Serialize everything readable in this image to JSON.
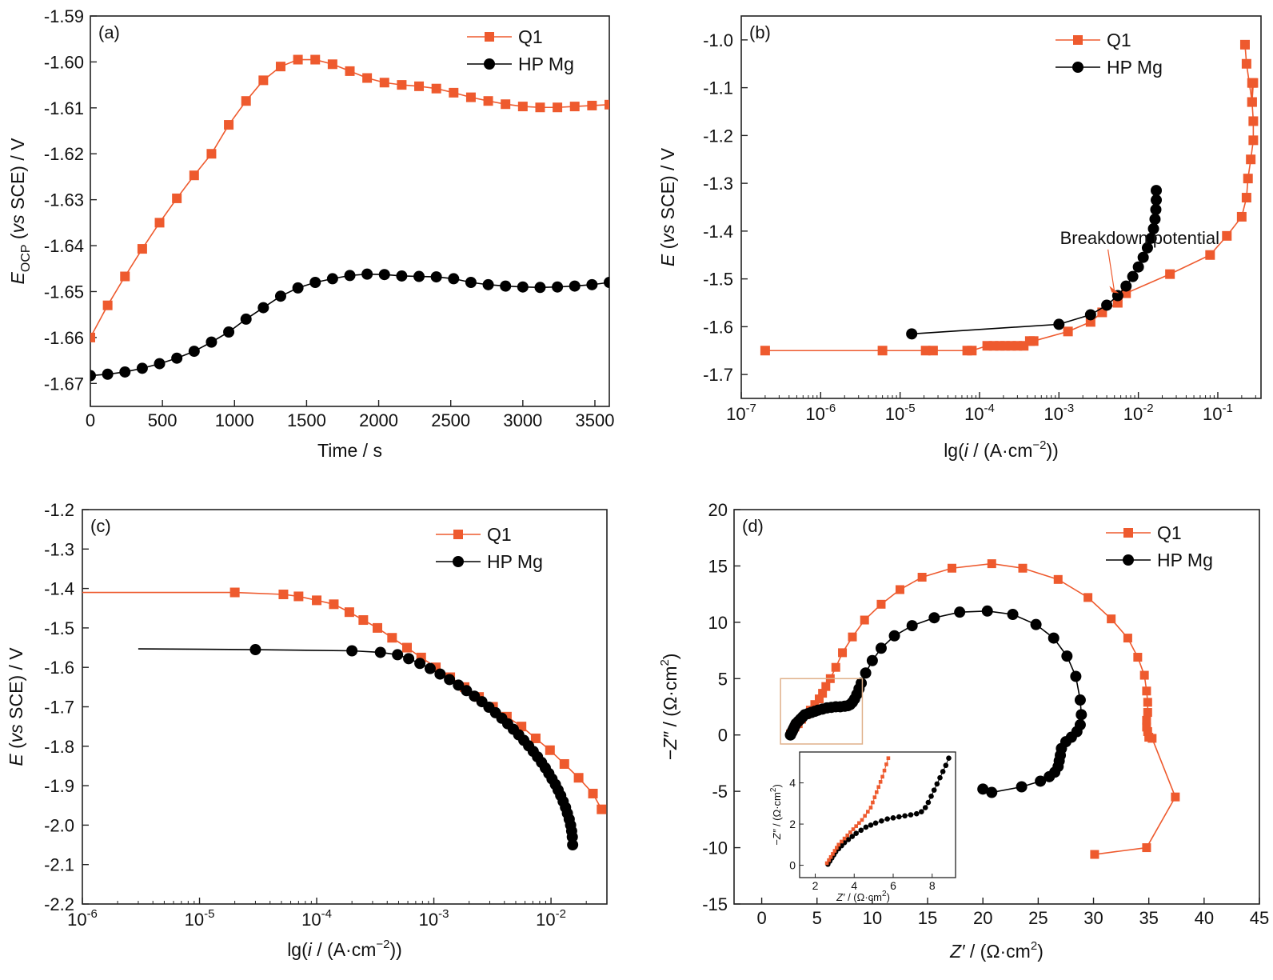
{
  "colors": {
    "q1": "#ee5a2e",
    "hp": "#000000",
    "frame": "#222222",
    "inset_box": "#e0b08a"
  },
  "chart_data": [
    {
      "id": "a",
      "type": "line",
      "panel_label": "(a)",
      "xlabel": "Time / s",
      "ylabel": {
        "main": "E",
        "sub": "OCP",
        "rest": " (vs SCE) / V",
        "italic_part": "vs"
      },
      "xlim": [
        0,
        3600
      ],
      "ylim": [
        -1.675,
        -1.59
      ],
      "xticks": [
        0,
        500,
        1000,
        1500,
        2000,
        2500,
        3000,
        3500
      ],
      "xtick_labels": [
        "0",
        "500",
        "1000",
        "1500",
        "2000",
        "2500",
        "3000",
        "3500"
      ],
      "yticks": [
        -1.59,
        -1.6,
        -1.61,
        -1.62,
        -1.63,
        -1.64,
        -1.65,
        -1.66,
        -1.67
      ],
      "ytick_labels": [
        "-1.59",
        "-1.60",
        "-1.61",
        "-1.62",
        "-1.63",
        "-1.64",
        "-1.65",
        "-1.66",
        "-1.67"
      ],
      "legend": "top-right",
      "series": [
        {
          "name": "Q1",
          "marker": "square",
          "color": "#ee5a2e",
          "x": [
            0,
            120,
            240,
            360,
            480,
            600,
            720,
            840,
            960,
            1080,
            1200,
            1320,
            1440,
            1560,
            1680,
            1800,
            1920,
            2040,
            2160,
            2280,
            2400,
            2520,
            2640,
            2760,
            2880,
            3000,
            3120,
            3240,
            3360,
            3480,
            3600
          ],
          "y": [
            -1.66,
            -1.653,
            -1.6467,
            -1.6407,
            -1.635,
            -1.6297,
            -1.6247,
            -1.62,
            -1.6137,
            -1.6085,
            -1.604,
            -1.601,
            -1.5995,
            -1.5995,
            -1.6005,
            -1.602,
            -1.6035,
            -1.6045,
            -1.605,
            -1.6053,
            -1.6058,
            -1.6067,
            -1.6077,
            -1.6085,
            -1.6092,
            -1.6097,
            -1.6099,
            -1.6099,
            -1.6097,
            -1.6095,
            -1.6093
          ]
        },
        {
          "name": "HP Mg",
          "marker": "circle",
          "color": "#000000",
          "x": [
            0,
            120,
            240,
            360,
            480,
            600,
            720,
            840,
            960,
            1080,
            1200,
            1320,
            1440,
            1560,
            1680,
            1800,
            1920,
            2040,
            2160,
            2280,
            2400,
            2520,
            2640,
            2760,
            2880,
            3000,
            3120,
            3240,
            3360,
            3480,
            3600
          ],
          "y": [
            -1.6683,
            -1.668,
            -1.6675,
            -1.6667,
            -1.6657,
            -1.6645,
            -1.663,
            -1.661,
            -1.6588,
            -1.656,
            -1.6535,
            -1.651,
            -1.6492,
            -1.648,
            -1.6472,
            -1.6465,
            -1.6462,
            -1.6463,
            -1.6466,
            -1.6467,
            -1.6468,
            -1.6472,
            -1.648,
            -1.6485,
            -1.6488,
            -1.649,
            -1.6491,
            -1.649,
            -1.6488,
            -1.6485,
            -1.648
          ]
        }
      ]
    },
    {
      "id": "b",
      "type": "line",
      "panel_label": "(b)",
      "xlabel": {
        "pre": "lg(",
        "italic": "i",
        "post": " / (A·cm",
        "sup": "−2",
        "end": "))"
      },
      "ylabel": {
        "main": "E",
        "rest_pre": " (",
        "italic_part": "vs",
        "rest_post": " SCE) / V"
      },
      "xscale": "log",
      "xlim": [
        1e-07,
        0.35
      ],
      "ylim": [
        -1.75,
        -0.95
      ],
      "xticks": [
        1e-07,
        1e-06,
        1e-05,
        0.0001,
        0.001,
        0.01,
        0.1
      ],
      "xtick_labels": [
        [
          "10",
          "-7"
        ],
        [
          "10",
          "-6"
        ],
        [
          "10",
          "-5"
        ],
        [
          "10",
          "-4"
        ],
        [
          "10",
          "-3"
        ],
        [
          "10",
          "-2"
        ],
        [
          "10",
          "-1"
        ]
      ],
      "yticks": [
        -1.0,
        -1.1,
        -1.2,
        -1.3,
        -1.4,
        -1.5,
        -1.6,
        -1.7
      ],
      "ytick_labels": [
        "-1.0",
        "-1.1",
        "-1.2",
        "-1.3",
        "-1.4",
        "-1.5",
        "-1.6",
        "-1.7"
      ],
      "legend": "top-right",
      "annotation": {
        "text": "Breakdown potential",
        "tx": 0.0013,
        "ty": -1.43,
        "ax": 0.0057,
        "ay": -1.53
      },
      "series": [
        {
          "name": "Q1",
          "marker": "square",
          "color": "#ee5a2e",
          "x": [
            2e-07,
            6e-06,
            2.1e-05,
            2.6e-05,
            7e-05,
            8e-05,
            0.000125,
            0.00015,
            0.00018,
            0.00021,
            0.00025,
            0.0003,
            0.00036,
            0.00043,
            0.00048,
            0.0013,
            0.0025,
            0.0035,
            0.0055,
            0.007,
            0.025,
            0.08,
            0.13,
            0.2,
            0.23,
            0.24,
            0.26,
            0.28,
            0.28,
            0.27,
            0.27,
            0.28,
            0.27,
            0.23,
            0.22
          ],
          "y": [
            -1.65,
            -1.65,
            -1.65,
            -1.65,
            -1.65,
            -1.65,
            -1.64,
            -1.64,
            -1.64,
            -1.64,
            -1.64,
            -1.64,
            -1.64,
            -1.63,
            -1.63,
            -1.61,
            -1.59,
            -1.57,
            -1.55,
            -1.53,
            -1.49,
            -1.45,
            -1.41,
            -1.37,
            -1.33,
            -1.29,
            -1.25,
            -1.21,
            -1.17,
            -1.13,
            -1.09,
            -1.09,
            -1.13,
            -1.05,
            -1.01
          ]
        },
        {
          "name": "HP Mg",
          "marker": "circle",
          "color": "#000000",
          "x": [
            1.4e-05,
            0.001,
            0.0025,
            0.004,
            0.0055,
            0.007,
            0.0085,
            0.01,
            0.0115,
            0.013,
            0.0145,
            0.0155,
            0.0162,
            0.0166,
            0.0168,
            0.0168
          ],
          "y": [
            -1.615,
            -1.595,
            -1.575,
            -1.555,
            -1.535,
            -1.515,
            -1.495,
            -1.475,
            -1.455,
            -1.435,
            -1.415,
            -1.395,
            -1.375,
            -1.355,
            -1.335,
            -1.315
          ]
        }
      ]
    },
    {
      "id": "c",
      "type": "line",
      "panel_label": "(c)",
      "xlabel": {
        "pre": "lg(",
        "italic": "i",
        "post": " / (A·cm",
        "sup": "−2",
        "end": "))"
      },
      "ylabel": {
        "main": "E",
        "rest_pre": " (",
        "italic_part": "vs",
        "rest_post": " SCE) / V"
      },
      "xscale": "log",
      "xlim": [
        1e-06,
        0.03
      ],
      "ylim": [
        -2.2,
        -1.2
      ],
      "xticks": [
        1e-06,
        1e-05,
        0.0001,
        0.001,
        0.01
      ],
      "xtick_labels": [
        [
          "10",
          "-6"
        ],
        [
          "10",
          "-5"
        ],
        [
          "10",
          "-4"
        ],
        [
          "10",
          "-3"
        ],
        [
          "10",
          "-2"
        ]
      ],
      "yticks": [
        -1.2,
        -1.3,
        -1.4,
        -1.5,
        -1.6,
        -1.7,
        -1.8,
        -1.9,
        -2.0,
        -2.1,
        -2.2
      ],
      "ytick_labels": [
        "-1.2",
        "-1.3",
        "-1.4",
        "-1.5",
        "-1.6",
        "-1.7",
        "-1.8",
        "-1.9",
        "-2.0",
        "-2.1",
        "-2.2"
      ],
      "legend": "top-right",
      "series": [
        {
          "name": "Q1",
          "marker": "square",
          "color": "#ee5a2e",
          "x": [
            1e-06,
            2e-05,
            5.2e-05,
            7e-05,
            0.0001,
            0.00014,
            0.00019,
            0.00025,
            0.00033,
            0.00044,
            0.00059,
            0.00078,
            0.00104,
            0.00138,
            0.00183,
            0.00243,
            0.0032,
            0.0042,
            0.0056,
            0.0074,
            0.0098,
            0.013,
            0.0172,
            0.0228,
            0.027
          ],
          "y": [
            -1.41,
            -1.41,
            -1.415,
            -1.42,
            -1.43,
            -1.44,
            -1.46,
            -1.48,
            -1.5,
            -1.525,
            -1.55,
            -1.575,
            -1.6,
            -1.625,
            -1.65,
            -1.675,
            -1.7,
            -1.725,
            -1.75,
            -1.78,
            -1.81,
            -1.845,
            -1.88,
            -1.92,
            -1.96
          ]
        },
        {
          "name": "HP Mg",
          "marker": "circle",
          "color": "#000000",
          "x": [
            3e-06,
            3e-05,
            0.0002,
            0.00035,
            0.00049,
            0.00061,
            0.00076,
            0.00093,
            0.00113,
            0.00136,
            0.00162,
            0.0019,
            0.00222,
            0.00257,
            0.00295,
            0.00336,
            0.0038,
            0.00427,
            0.00477,
            0.0053,
            0.00586,
            0.00644,
            0.00705,
            0.00767,
            0.0083,
            0.00894,
            0.00958,
            0.0102,
            0.0109,
            0.0115,
            0.0121,
            0.0127,
            0.0133,
            0.0138,
            0.0143,
            0.0147,
            0.015,
            0.0152,
            0.0153
          ],
          "y": [
            -1.553,
            -1.555,
            -1.558,
            -1.562,
            -1.568,
            -1.578,
            -1.59,
            -1.603,
            -1.617,
            -1.631,
            -1.645,
            -1.659,
            -1.673,
            -1.687,
            -1.701,
            -1.715,
            -1.729,
            -1.743,
            -1.757,
            -1.771,
            -1.785,
            -1.799,
            -1.813,
            -1.827,
            -1.841,
            -1.855,
            -1.869,
            -1.883,
            -1.897,
            -1.911,
            -1.925,
            -1.94,
            -1.955,
            -1.97,
            -1.985,
            -2.0,
            -2.015,
            -2.03,
            -2.05
          ]
        }
      ]
    },
    {
      "id": "d",
      "type": "scatter",
      "panel_label": "(d)",
      "xlabel": {
        "main": "Z′",
        "rest": " / (Ω·cm",
        "sup": "2",
        "end": ")"
      },
      "ylabel": {
        "main": "−Z″",
        "rest": " / (Ω·cm",
        "sup": "2",
        "end": ")"
      },
      "xlim": [
        -2.5,
        45
      ],
      "ylim": [
        -15,
        20
      ],
      "xticks": [
        0,
        5,
        10,
        15,
        20,
        25,
        30,
        35,
        40,
        45
      ],
      "xtick_labels": [
        "0",
        "5",
        "10",
        "15",
        "20",
        "25",
        "30",
        "35",
        "40",
        "45"
      ],
      "yticks": [
        -15,
        -10,
        -5,
        0,
        5,
        10,
        15,
        20
      ],
      "ytick_labels": [
        "-15",
        "-10",
        "-5",
        "0",
        "5",
        "10",
        "15",
        "20"
      ],
      "legend": "top-right",
      "series": [
        {
          "name": "Q1",
          "marker": "square",
          "color": "#ee5a2e",
          "x": [
            2.6,
            2.8,
            3.0,
            3.3,
            3.6,
            4.0,
            4.4,
            4.8,
            5.2,
            5.5,
            5.8,
            6.2,
            6.7,
            7.3,
            8.2,
            9.3,
            10.8,
            12.5,
            14.5,
            17.2,
            20.8,
            23.6,
            26.8,
            29.5,
            31.6,
            33.1,
            34.0,
            34.6,
            34.8,
            34.9,
            34.9,
            34.8,
            34.8,
            34.9,
            35.0,
            35.3,
            37.4,
            34.8,
            30.1
          ],
          "y": [
            0.1,
            0.4,
            0.7,
            1.0,
            1.4,
            1.8,
            2.2,
            2.7,
            3.2,
            3.7,
            4.3,
            5.0,
            6.0,
            7.3,
            8.7,
            10.2,
            11.6,
            12.9,
            14.0,
            14.8,
            15.2,
            14.8,
            13.8,
            12.2,
            10.3,
            8.6,
            6.9,
            5.3,
            3.9,
            2.9,
            2.0,
            1.3,
            0.7,
            0.3,
            -0.2,
            -0.3,
            -5.5,
            -10.0,
            -10.6
          ]
        },
        {
          "name": "HP Mg",
          "marker": "circle",
          "color": "#000000",
          "x": [
            2.6,
            2.7,
            2.8,
            2.9,
            3.0,
            3.1,
            3.3,
            3.5,
            3.7,
            3.9,
            4.2,
            4.5,
            4.8,
            5.1,
            5.5,
            5.9,
            6.3,
            6.7,
            7.1,
            7.5,
            7.8,
            8.0,
            8.2,
            8.4,
            8.6,
            8.8,
            9.0,
            9.4,
            10.0,
            10.8,
            12.0,
            13.6,
            15.6,
            17.9,
            20.4,
            22.7,
            24.8,
            26.4,
            27.6,
            28.4,
            28.8,
            28.9,
            28.8,
            28.5,
            28.0,
            27.5,
            27.1,
            27.0,
            26.9,
            26.8,
            26.5,
            26.0,
            25.2,
            23.5,
            20.8,
            20.0
          ],
          "y": [
            0.0,
            0.2,
            0.4,
            0.6,
            0.8,
            1.0,
            1.2,
            1.4,
            1.6,
            1.8,
            1.9,
            2.0,
            2.1,
            2.2,
            2.3,
            2.4,
            2.45,
            2.5,
            2.5,
            2.55,
            2.6,
            2.7,
            2.9,
            3.2,
            3.6,
            4.1,
            4.6,
            5.5,
            6.6,
            7.7,
            8.8,
            9.7,
            10.4,
            10.9,
            11.0,
            10.7,
            9.8,
            8.6,
            7.0,
            5.2,
            3.1,
            1.8,
            0.9,
            0.3,
            -0.2,
            -0.6,
            -1.2,
            -1.8,
            -2.3,
            -2.8,
            -3.3,
            -3.7,
            -4.1,
            -4.6,
            -5.1,
            -4.8
          ]
        }
      ],
      "inset": {
        "xlim": [
          1.2,
          9.2
        ],
        "ylim": [
          -0.6,
          5.5
        ],
        "xticks": [
          2,
          4,
          6,
          8
        ],
        "xtick_labels": [
          "2",
          "4",
          "6",
          "8"
        ],
        "yticks": [
          0,
          2,
          4
        ],
        "ytick_labels": [
          "0",
          "2",
          "4"
        ],
        "xlabel": {
          "main": "Z′",
          "rest": " / (Ω·cm",
          "sup": "2",
          "end": ")"
        },
        "ylabel": {
          "main": "−Z″",
          "rest": " / (Ω·cm",
          "sup": "2",
          "end": ")"
        },
        "q1_x": [
          2.6,
          2.7,
          2.8,
          2.9,
          3.0,
          3.1,
          3.2,
          3.35,
          3.5,
          3.65,
          3.8,
          3.95,
          4.1,
          4.25,
          4.4,
          4.55,
          4.7,
          4.85,
          4.95,
          5.05,
          5.15,
          5.25,
          5.35,
          5.45,
          5.55,
          5.65,
          5.75
        ],
        "q1_y": [
          0.1,
          0.25,
          0.4,
          0.55,
          0.7,
          0.85,
          1.0,
          1.15,
          1.3,
          1.45,
          1.6,
          1.75,
          1.9,
          2.05,
          2.2,
          2.4,
          2.6,
          2.8,
          3.05,
          3.3,
          3.55,
          3.8,
          4.05,
          4.3,
          4.6,
          4.9,
          5.2
        ],
        "hp_x": [
          2.65,
          2.75,
          2.85,
          2.95,
          3.05,
          3.2,
          3.35,
          3.5,
          3.7,
          3.9,
          4.1,
          4.35,
          4.6,
          4.85,
          5.1,
          5.4,
          5.7,
          6.0,
          6.3,
          6.6,
          6.9,
          7.2,
          7.45,
          7.65,
          7.8,
          7.95,
          8.1,
          8.25,
          8.4,
          8.55,
          8.7,
          8.85
        ],
        "hp_y": [
          0.05,
          0.2,
          0.35,
          0.5,
          0.65,
          0.8,
          0.95,
          1.1,
          1.25,
          1.4,
          1.55,
          1.7,
          1.85,
          1.95,
          2.05,
          2.15,
          2.25,
          2.3,
          2.35,
          2.4,
          2.45,
          2.5,
          2.6,
          2.8,
          3.05,
          3.35,
          3.65,
          3.95,
          4.25,
          4.55,
          4.85,
          5.2
        ]
      }
    }
  ]
}
